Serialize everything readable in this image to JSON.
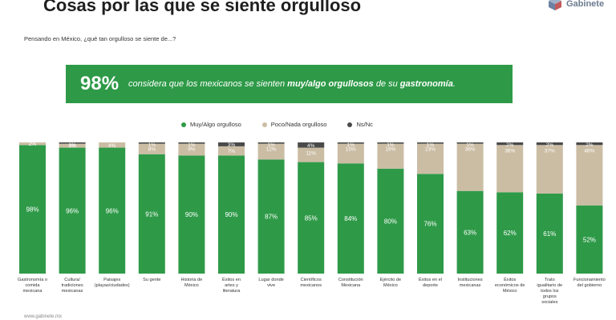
{
  "title": "Cosas por las que se siente orgulloso",
  "brand": {
    "name": "Gabinete",
    "icon": "cube-logo-icon"
  },
  "question": "Pensando en México, ¿qué tan orgulloso se siente de...?",
  "banner": {
    "pct": "98%",
    "text_1": "considera que los mexicanos se sienten",
    "text_bold_1": "muy/algo orgullosos",
    "text_2": "de su",
    "text_bold_2": "gastronomía",
    "text_3": "."
  },
  "footer": "www.gabinete.mx",
  "colors": {
    "green": "#2e9a48",
    "tan": "#cbbda4",
    "gray": "#4a4a4a"
  },
  "chart_data": {
    "type": "bar",
    "stacked": true,
    "ylim": [
      0,
      100
    ],
    "legend_position": "top-center",
    "categories": [
      "Gastronomía o comida mexicana",
      "Cultura/ tradiciones mexicanas",
      "Paisajes (playas/ciudades)",
      "Su gente",
      "Historia de México",
      "Éxitos en artes y literatura",
      "Lugar donde vive",
      "Científicos mexicanos",
      "Constitución Mexicana",
      "Ejército de México",
      "Éxitos en el deporte",
      "Instituciones mexicanas",
      "Éxitos económicos de México",
      "Trato igualitario de todos los grupos sociales",
      "Funcionamiento del gobierno"
    ],
    "series": [
      {
        "name": "Muy/Algo orgulloso",
        "values": [
          98,
          96,
          96,
          91,
          90,
          90,
          87,
          85,
          84,
          80,
          76,
          63,
          62,
          61,
          52
        ],
        "labels": [
          "98%",
          "96%",
          "96%",
          "91%",
          "90%",
          "90%",
          "87%",
          "85%",
          "84%",
          "80%",
          "76%",
          "63%",
          "62%",
          "61%",
          "52%"
        ]
      },
      {
        "name": "Poco/Nada orgulloso",
        "values": [
          2,
          3,
          4,
          8,
          9,
          7,
          12,
          11,
          15,
          19,
          23,
          36,
          36,
          37,
          46
        ],
        "labels": [
          "2%",
          "3%",
          "4%",
          "8%",
          "9%",
          "7%",
          "12%",
          "11%",
          "15%",
          "19%",
          "23%",
          "36%",
          "36%",
          "37%",
          "46%"
        ]
      },
      {
        "name": "Ns/Nc",
        "values": [
          0,
          1,
          0,
          1,
          1,
          3,
          1,
          4,
          1,
          1,
          1,
          1,
          2,
          2,
          2
        ],
        "labels": [
          "",
          "1%",
          "",
          "1%",
          "1%",
          "3%",
          "1%",
          "4%",
          "1%",
          "1%",
          "1%",
          "1%",
          "2%",
          "2%",
          "2%"
        ]
      }
    ]
  }
}
